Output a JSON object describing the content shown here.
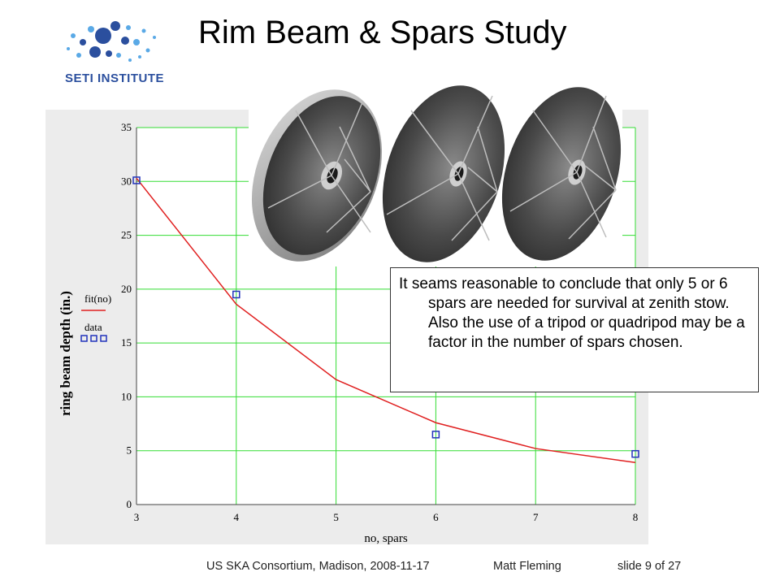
{
  "slide": {
    "title": "Rim Beam & Spars Study",
    "logo_text": "SETI INSTITUTE",
    "callout_text": "It seams reasonable to conclude that only 5 or 6 spars are needed for survival at zenith stow.  Also the use of a tripod or quadripod may be a factor in the number of spars chosen.",
    "footer": {
      "event": "US SKA Consortium, Madison, 2008-11-17",
      "author": "Matt Fleming",
      "page": "slide 9 of 27"
    }
  },
  "colors": {
    "grid": "#33dd33",
    "fit_line": "#e02020",
    "data_marker": "#2233bb",
    "logo_blue": "#2b4f9e"
  },
  "chart_data": {
    "type": "line",
    "xlabel": "no, spars",
    "ylabel": "ring beam depth (in.)",
    "xlim": [
      3,
      8
    ],
    "ylim": [
      0,
      35
    ],
    "x_ticks": [
      "3",
      "4",
      "5",
      "6",
      "7",
      "8"
    ],
    "y_ticks": [
      "0",
      "5",
      "10",
      "15",
      "20",
      "25",
      "30",
      "35"
    ],
    "grid": true,
    "legend_position": "left of plot",
    "series": [
      {
        "name": "fit(no)",
        "style": "line",
        "x": [
          3,
          4,
          5,
          6,
          7,
          8
        ],
        "y": [
          30.3,
          18.6,
          11.6,
          7.6,
          5.2,
          3.9
        ]
      },
      {
        "name": "data",
        "style": "markers",
        "x": [
          3,
          4,
          6,
          8
        ],
        "y": [
          30.1,
          19.5,
          6.5,
          4.7
        ]
      }
    ]
  }
}
